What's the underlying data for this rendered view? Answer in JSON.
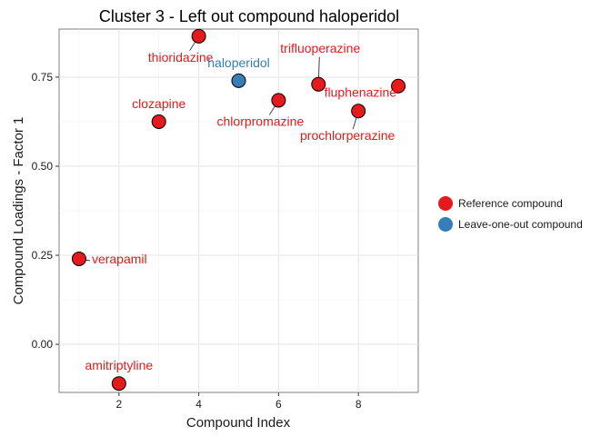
{
  "chart_data": {
    "type": "scatter",
    "title": "Cluster 3 - Left out compound haloperidol",
    "xlabel": "Compound Index",
    "ylabel": "Compound Loadings - Factor 1",
    "xlim": [
      0.5,
      9.5
    ],
    "ylim": [
      -0.135,
      0.885
    ],
    "xticks": [
      2,
      4,
      6,
      8
    ],
    "xtick_labels": [
      "2",
      "4",
      "6",
      "8"
    ],
    "yticks": [
      0.0,
      0.25,
      0.5,
      0.75
    ],
    "ytick_labels": [
      "0.00",
      "0.25",
      "0.50",
      "0.75"
    ],
    "grid": true,
    "legend_position": "right",
    "series": [
      {
        "name": "Reference compound",
        "color": "#e41a1c",
        "points": [
          {
            "x": 1,
            "y": 0.24,
            "label": "verapamil",
            "label_pos": "right"
          },
          {
            "x": 2,
            "y": -0.11,
            "label": "amitriptyline",
            "label_pos": "above"
          },
          {
            "x": 3,
            "y": 0.625,
            "label": "clozapine",
            "label_pos": "above"
          },
          {
            "x": 4,
            "y": 0.865,
            "label": "thioridazine",
            "label_pos": "below-left"
          },
          {
            "x": 6,
            "y": 0.685,
            "label": "chlorpromazine",
            "label_pos": "below-left"
          },
          {
            "x": 7,
            "y": 0.73,
            "label": "trifluoperazine",
            "label_pos": "above"
          },
          {
            "x": 8,
            "y": 0.655,
            "label": "prochlorperazine",
            "label_pos": "below-left"
          },
          {
            "x": 9,
            "y": 0.725,
            "label": "fluphenazine",
            "label_pos": "left"
          }
        ]
      },
      {
        "name": "Leave-one-out compound",
        "color": "#377eb8",
        "points": [
          {
            "x": 5,
            "y": 0.74,
            "label": "haloperidol",
            "label_pos": "above"
          }
        ]
      }
    ]
  }
}
